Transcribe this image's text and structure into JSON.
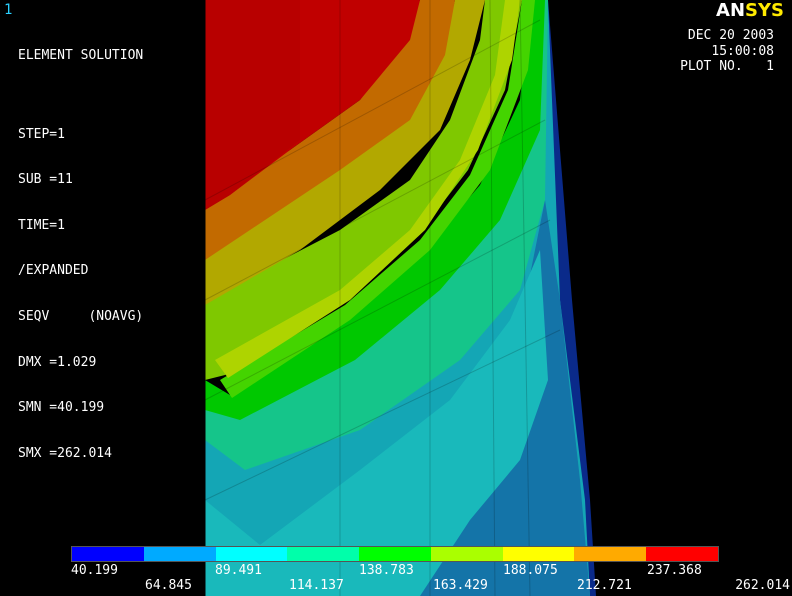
{
  "window_number": "1",
  "logo": {
    "prefix": "AN",
    "suffix": "SYS",
    "prefix_color": "#ffffff",
    "suffix_color": "#ffea00"
  },
  "info_lines": [
    "ELEMENT SOLUTION",
    "",
    "STEP=1",
    "SUB =11",
    "TIME=1",
    "/EXPANDED",
    "SEQV     (NOAVG)",
    "DMX =1.029",
    "SMN =40.199",
    "SMX =262.014"
  ],
  "stamp": {
    "date": "DEC 20 2003",
    "time": "15:00:08",
    "plot": "PLOT NO.   1"
  },
  "legend": {
    "colors": [
      "#0000ff",
      "#00aaff",
      "#00ffff",
      "#00ffaa",
      "#00ff00",
      "#aaff00",
      "#ffff00",
      "#ffaa00",
      "#ff0000"
    ],
    "labels_top": [
      "40.199",
      "89.491",
      "138.783",
      "188.075",
      "237.368"
    ],
    "labels_bottom": [
      "64.845",
      "114.137",
      "163.429",
      "212.721",
      "262.014"
    ]
  }
}
